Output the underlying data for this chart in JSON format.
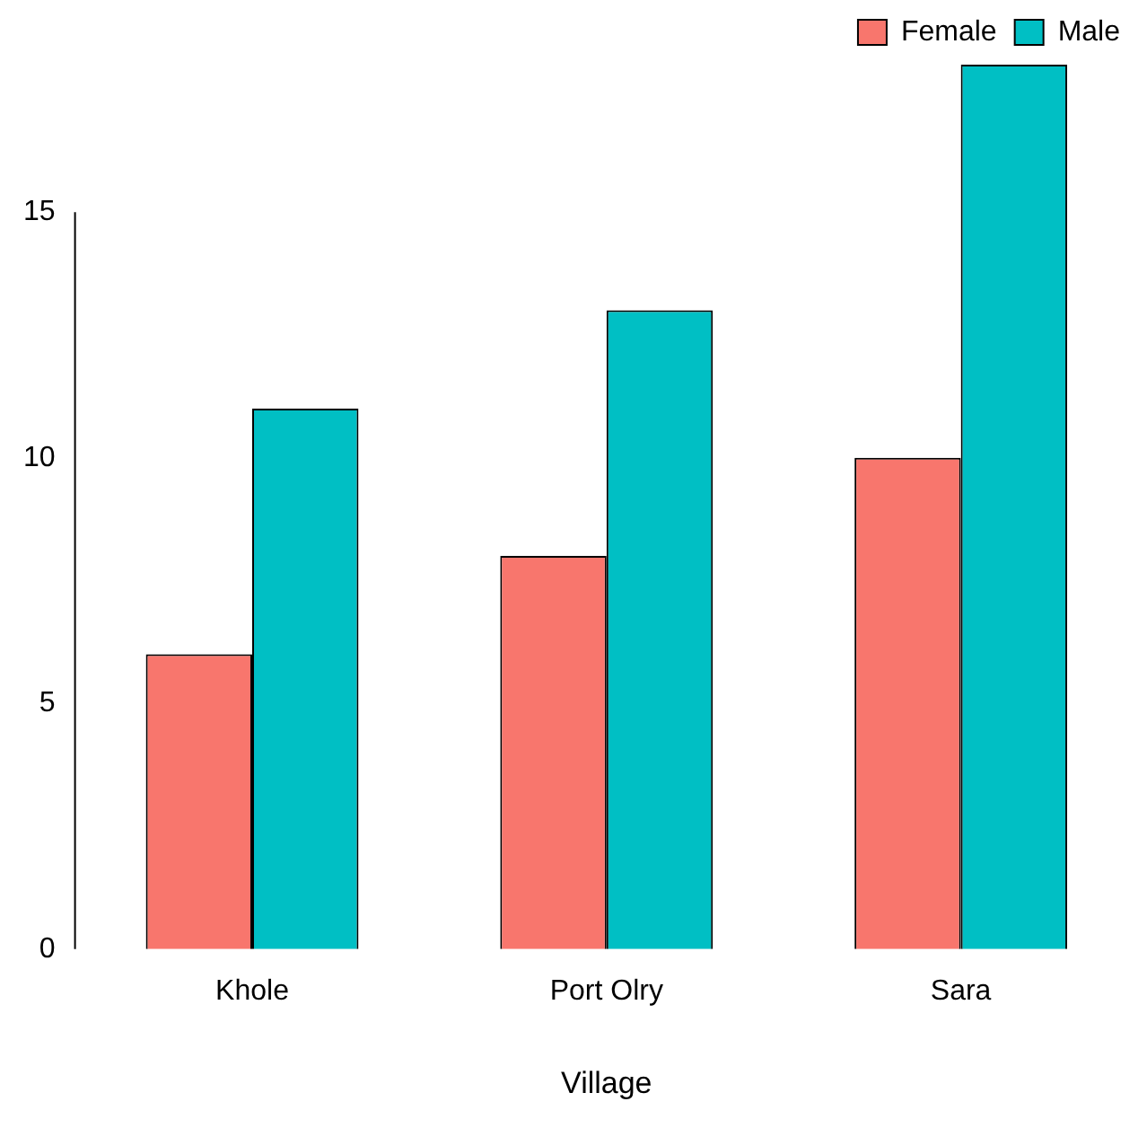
{
  "chart_data": {
    "type": "bar",
    "xlabel": "Village",
    "categories": [
      "Khole",
      "Port Olry",
      "Sara"
    ],
    "series": [
      {
        "name": "Female",
        "color": "#f8766d",
        "values": [
          6,
          8,
          10
        ]
      },
      {
        "name": "Male",
        "color": "#00bfc4",
        "values": [
          11,
          13,
          18
        ]
      }
    ],
    "ylim": [
      0,
      18
    ],
    "yticks": [
      0,
      5,
      10,
      15
    ],
    "grid": false,
    "legend": "top right"
  }
}
